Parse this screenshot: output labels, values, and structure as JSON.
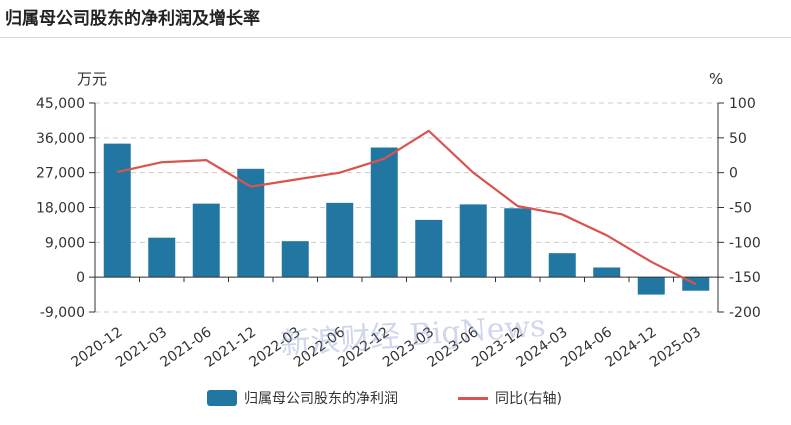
{
  "title": "归属母公司股东的净利润及增长率",
  "colors": {
    "bar": "#2277a2",
    "line": "#d9534f",
    "grid": "#cccccc",
    "axis": "#333333"
  },
  "legend": {
    "bar_label": "归属母公司股东的净利润",
    "line_label": "同比(右轴)"
  },
  "watermark": "新浪财经 BigNews",
  "chart_data": {
    "type": "bar",
    "categories": [
      "2020-12",
      "2021-03",
      "2021-06",
      "2021-12",
      "2022-03",
      "2022-06",
      "2022-12",
      "2023-03",
      "2023-06",
      "2023-12",
      "2024-03",
      "2024-06",
      "2024-12",
      "2025-03"
    ],
    "series": [
      {
        "name": "归属母公司股东的净利润",
        "type": "bar",
        "axis": "left",
        "values": [
          34500,
          10200,
          19000,
          28000,
          9300,
          19200,
          33500,
          14800,
          18800,
          17800,
          6200,
          2500,
          -4500,
          -3500
        ]
      },
      {
        "name": "同比(右轴)",
        "type": "line",
        "axis": "right",
        "values": [
          1,
          15,
          18,
          -20,
          -10,
          0,
          20,
          60,
          0,
          -48,
          -60,
          -90,
          -128,
          -160
        ]
      }
    ],
    "left_axis": {
      "unit": "万元",
      "ylim": [
        -9000,
        45000
      ],
      "ticks": [
        "45,000",
        "36,000",
        "27,000",
        "18,000",
        "9,000",
        "0",
        "-9,000"
      ]
    },
    "right_axis": {
      "unit": "%",
      "ylim": [
        -200,
        100
      ],
      "ticks": [
        "100",
        "50",
        "0",
        "-50",
        "-100",
        "-150",
        "-200"
      ]
    },
    "grid": true,
    "legend_position": "bottom"
  }
}
